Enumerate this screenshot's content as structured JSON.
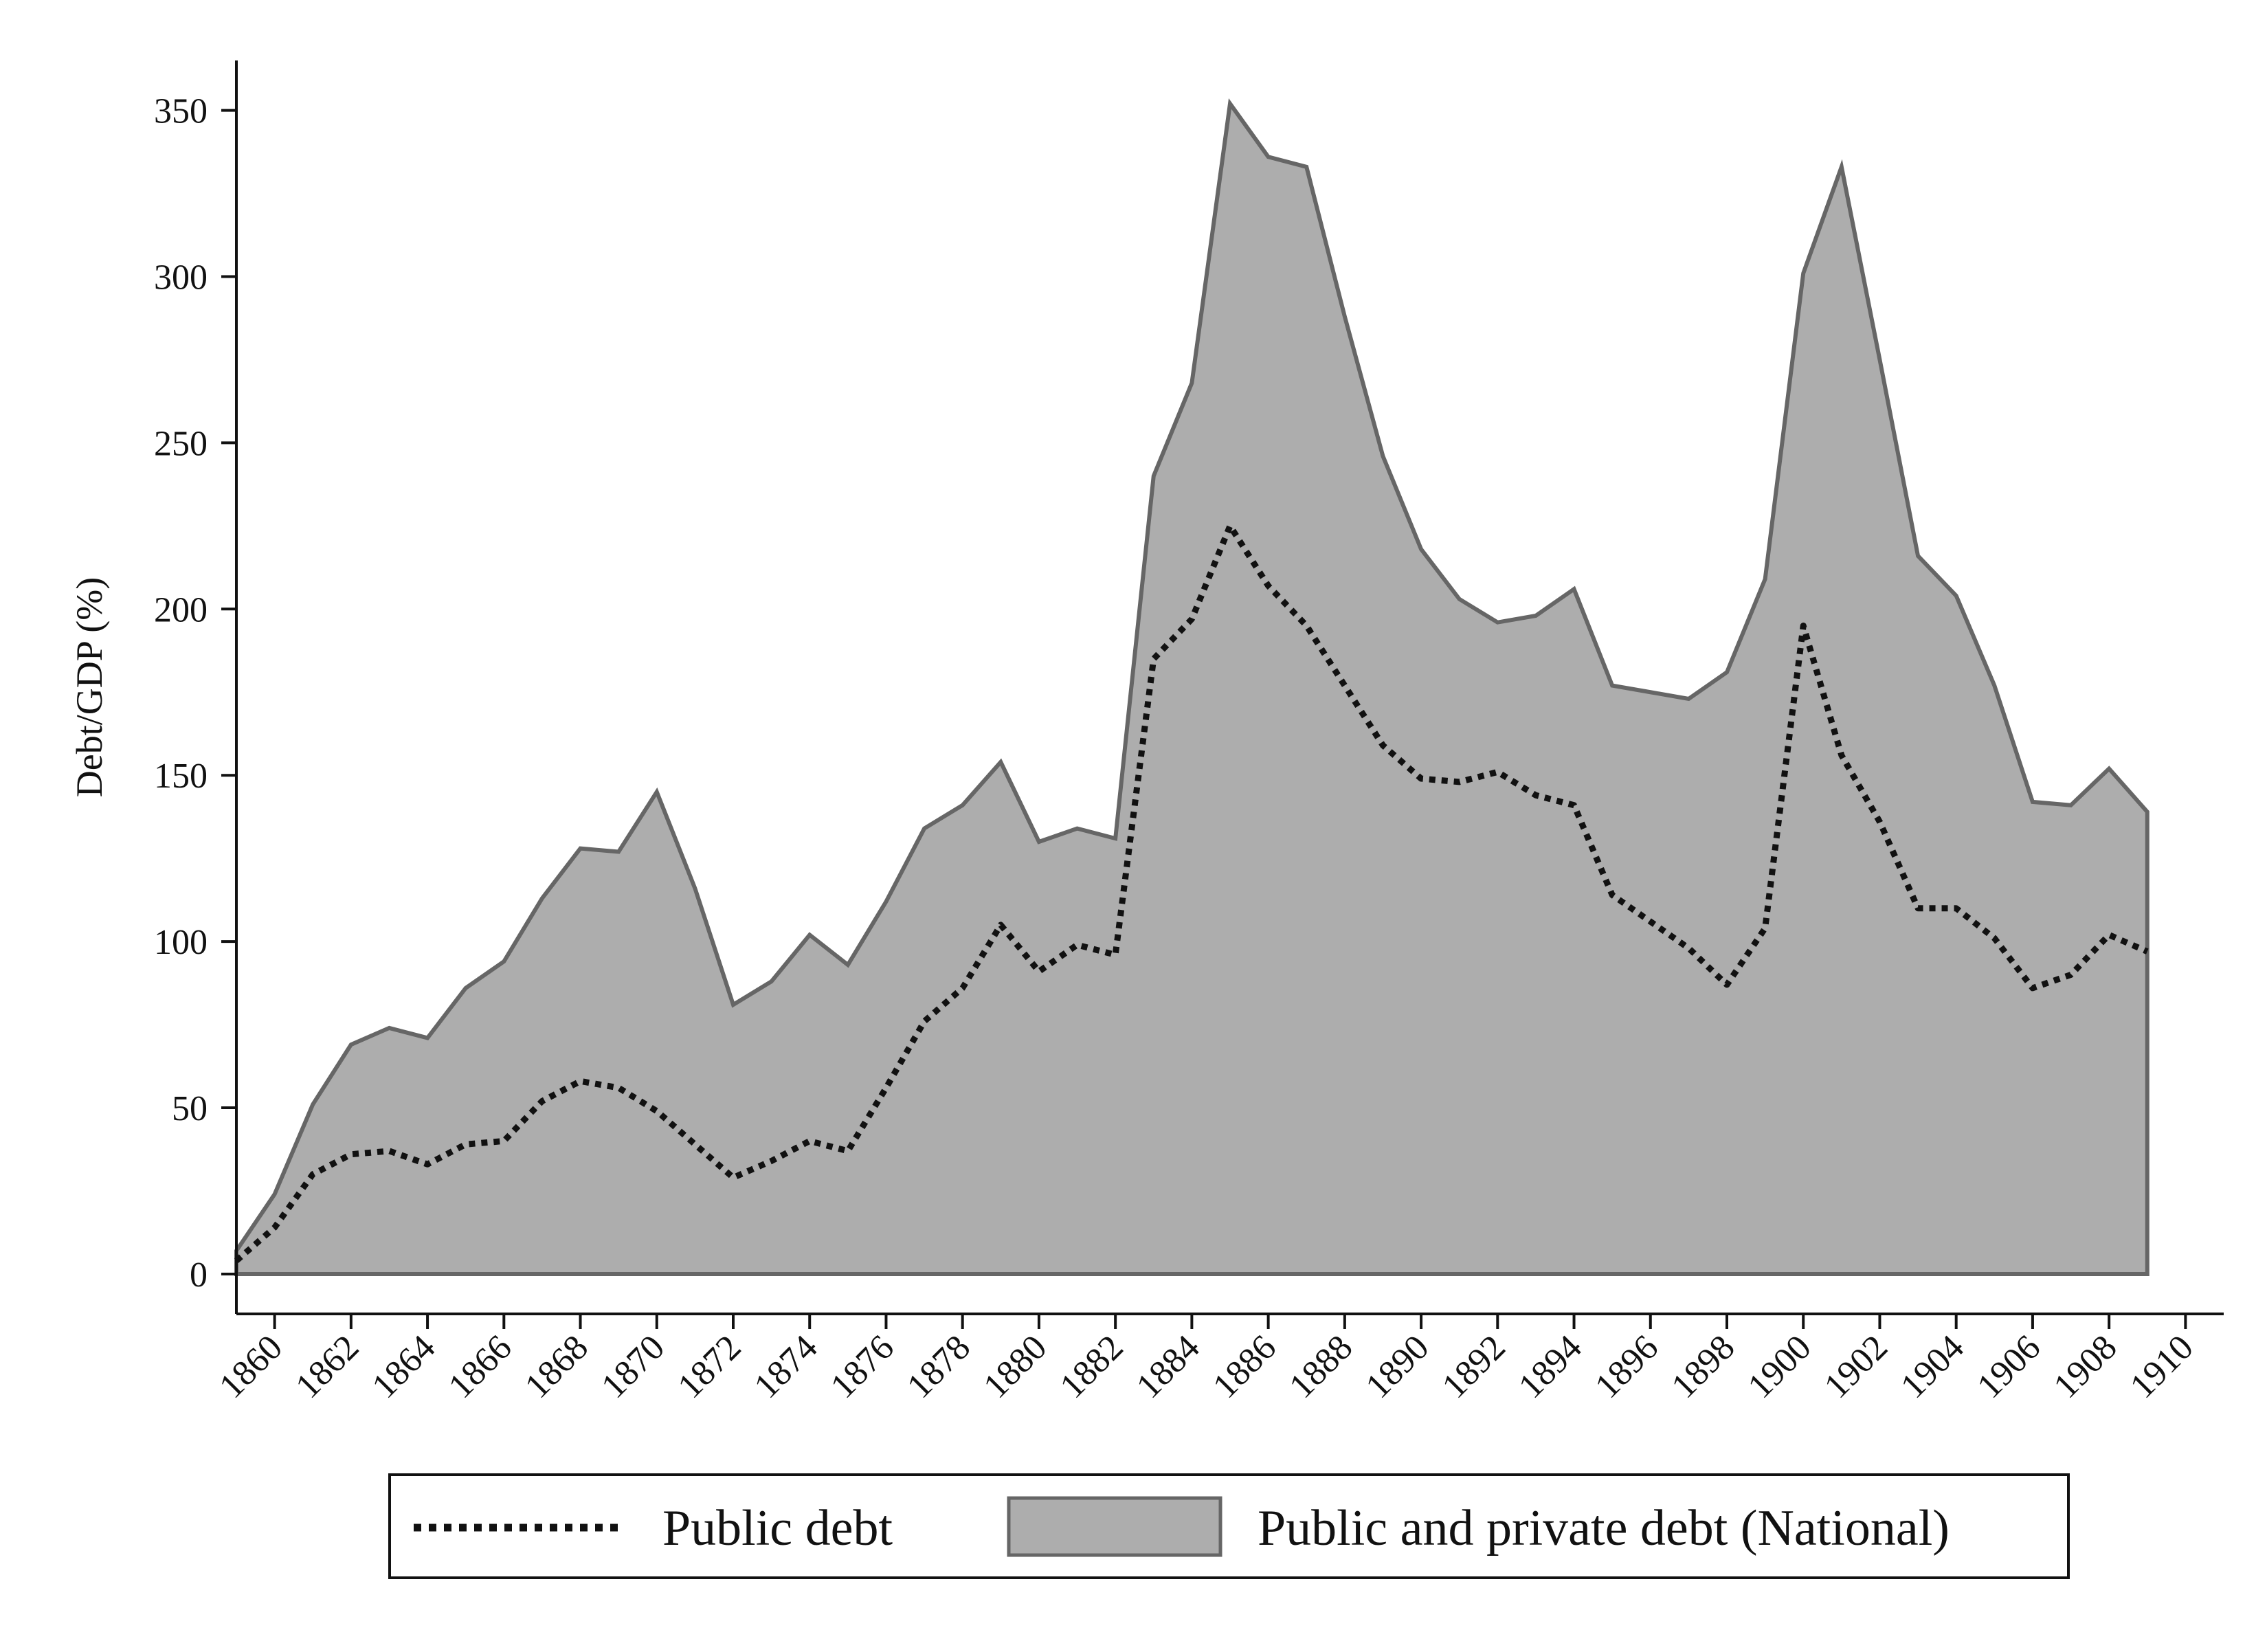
{
  "chart_data": {
    "type": "area",
    "ylabel": "Debt/GDP (%)",
    "xlabel": "",
    "ylim": [
      -12,
      365
    ],
    "xlim": [
      1859,
      1911
    ],
    "grid": false,
    "yticks": [
      0,
      50,
      100,
      150,
      200,
      250,
      300,
      350
    ],
    "xticks": [
      1860,
      1862,
      1864,
      1866,
      1868,
      1870,
      1872,
      1874,
      1876,
      1878,
      1880,
      1882,
      1884,
      1886,
      1888,
      1890,
      1892,
      1894,
      1896,
      1898,
      1900,
      1902,
      1904,
      1906,
      1908,
      1910
    ],
    "legend_position": "bottom",
    "x": [
      1859,
      1860,
      1861,
      1862,
      1863,
      1864,
      1865,
      1866,
      1867,
      1868,
      1869,
      1870,
      1871,
      1872,
      1873,
      1874,
      1875,
      1876,
      1877,
      1878,
      1879,
      1880,
      1881,
      1882,
      1883,
      1884,
      1885,
      1886,
      1887,
      1888,
      1889,
      1890,
      1891,
      1892,
      1893,
      1894,
      1895,
      1896,
      1897,
      1898,
      1899,
      1900,
      1901,
      1902,
      1903,
      1904,
      1905,
      1906,
      1907,
      1908,
      1909
    ],
    "series": [
      {
        "name": "Public debt",
        "style": "dotted",
        "color": "#111111",
        "values": [
          4,
          14,
          30,
          36,
          37,
          33,
          39,
          40,
          52,
          58,
          56,
          49,
          39,
          29,
          34,
          40,
          37,
          56,
          76,
          86,
          105,
          91,
          99,
          96,
          185,
          197,
          225,
          207,
          195,
          177,
          159,
          149,
          148,
          151,
          144,
          141,
          114,
          106,
          98,
          87,
          104,
          195,
          156,
          136,
          110,
          110,
          101,
          86,
          90,
          102,
          97
        ]
      },
      {
        "name": "Public and private debt (National)",
        "style": "area",
        "color": "#adadad",
        "edge_color": "#666666",
        "values": [
          7,
          24,
          51,
          69,
          74,
          71,
          86,
          94,
          113,
          128,
          127,
          145,
          116,
          81,
          88,
          102,
          93,
          112,
          134,
          141,
          154,
          130,
          134,
          131,
          240,
          268,
          352,
          336,
          333,
          288,
          246,
          218,
          203,
          196,
          198,
          206,
          177,
          175,
          173,
          181,
          209,
          301,
          333,
          275,
          216,
          204,
          177,
          142,
          141,
          152,
          139
        ]
      }
    ]
  }
}
